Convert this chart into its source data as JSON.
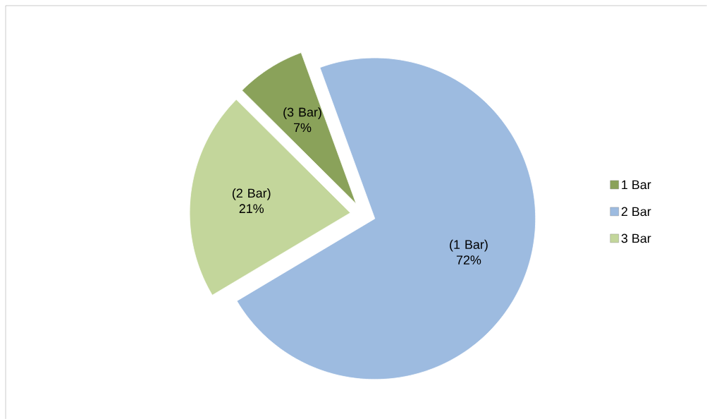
{
  "chart_data": {
    "type": "pie",
    "categories": [
      "1 Bar",
      "2 Bar",
      "3 Bar"
    ],
    "values": [
      7,
      72,
      21
    ],
    "colors": [
      "#8aa25a",
      "#9dbbe0",
      "#c3d69b"
    ],
    "value_labels": [
      "(3 Bar) 7%",
      "(1 Bar) 72%",
      "(2 Bar) 21%"
    ],
    "legend": "right"
  }
}
